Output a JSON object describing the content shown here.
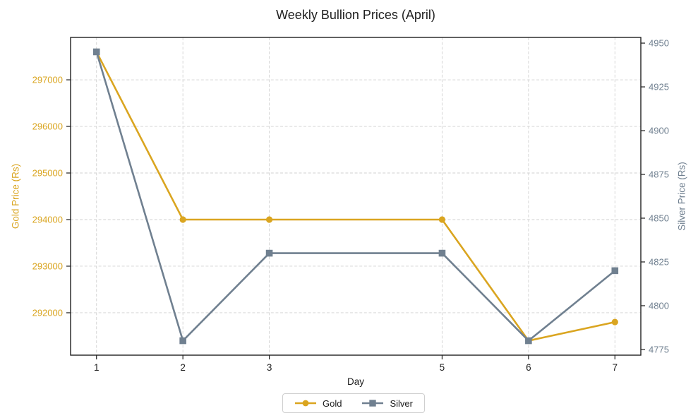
{
  "title": "Weekly Bullion Prices (April)",
  "axes": {
    "x_label": "Day",
    "left_label": "Gold Price (Rs)",
    "right_label": "Silver Price (Rs)"
  },
  "legend": {
    "items": [
      {
        "label": "Gold",
        "marker": "circle-marker-icon"
      },
      {
        "label": "Silver",
        "marker": "square-marker-icon"
      }
    ]
  },
  "colors": {
    "gold": "#DAA520",
    "silver": "#708090",
    "grid": "#d2d2d2",
    "spine": "#1f1f1f",
    "tick_text": "#1f1f1f"
  },
  "chart_data": {
    "type": "line",
    "title": "Weekly Bullion Prices (April)",
    "xlabel": "Day",
    "ylabel_left": "Gold Price (Rs)",
    "ylabel_right": "Silver Price (Rs)",
    "x": [
      1,
      2,
      3,
      5,
      6,
      7
    ],
    "series": [
      {
        "name": "Gold",
        "axis": "left",
        "color": "#DAA520",
        "marker": "circle",
        "values": [
          297600,
          294000,
          294000,
          294000,
          291400,
          291800
        ]
      },
      {
        "name": "Silver",
        "axis": "right",
        "color": "#708090",
        "marker": "square",
        "values": [
          4945,
          4780,
          4830,
          4830,
          4780,
          4820
        ]
      }
    ],
    "x_ticks": [
      1,
      2,
      3,
      5,
      6,
      7
    ],
    "left_ticks": [
      292000,
      293000,
      294000,
      295000,
      296000,
      297000
    ],
    "right_ticks": [
      4775,
      4800,
      4825,
      4850,
      4875,
      4900,
      4925,
      4950
    ],
    "xlim": [
      0.7,
      7.3
    ],
    "ylim_left": [
      291090,
      297910
    ],
    "ylim_right": [
      4771.75,
      4953.25
    ],
    "grid": true,
    "grid_style": "dashed",
    "legend_position": "bottom-center"
  }
}
